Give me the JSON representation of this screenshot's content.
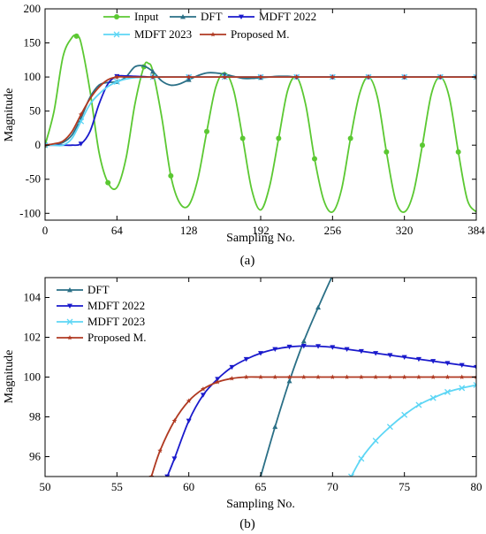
{
  "chart_data": [
    {
      "type": "line",
      "panel_label": "(a)",
      "xlabel": "Sampling No.",
      "ylabel": "Magnitude",
      "xlim": [
        0,
        384
      ],
      "ylim": [
        -110,
        200
      ],
      "xticks": [
        0,
        64,
        128,
        192,
        256,
        320,
        384
      ],
      "yticks": [
        -100,
        -50,
        0,
        50,
        100,
        150,
        200
      ],
      "grid": false,
      "legend_position": "top",
      "series": [
        {
          "name": "Input",
          "color": "#5bc832",
          "marker": "circle",
          "x": [
            0,
            8,
            16,
            24,
            28,
            32,
            40,
            48,
            56,
            64,
            72,
            80,
            88,
            92,
            96,
            104,
            112,
            120,
            128,
            136,
            144,
            152,
            160,
            168,
            176,
            184,
            192,
            200,
            208,
            216,
            224,
            232,
            240,
            248,
            256,
            264,
            272,
            280,
            288,
            296,
            304,
            312,
            320,
            328,
            336,
            344,
            352,
            360,
            368,
            376,
            384
          ],
          "y": [
            0,
            50,
            130,
            158,
            160,
            150,
            80,
            -10,
            -55,
            -62,
            -20,
            60,
            115,
            120,
            108,
            40,
            -45,
            -85,
            -88,
            -50,
            20,
            85,
            106,
            80,
            10,
            -65,
            -95,
            -60,
            10,
            80,
            100,
            60,
            -20,
            -80,
            -98,
            -65,
            10,
            75,
            100,
            70,
            -10,
            -80,
            -98,
            -70,
            0,
            75,
            100,
            70,
            -10,
            -80,
            -98
          ]
        },
        {
          "name": "DFT",
          "color": "#2a6f86",
          "marker": "triangle-up",
          "x": [
            0,
            8,
            16,
            24,
            32,
            40,
            48,
            56,
            64,
            72,
            80,
            88,
            96,
            104,
            112,
            120,
            128,
            136,
            144,
            152,
            160,
            168,
            176,
            184,
            192,
            200,
            208,
            216,
            224,
            232,
            240,
            248,
            256,
            264,
            272,
            280,
            288,
            296,
            304,
            312,
            320,
            328,
            336,
            344,
            352,
            360,
            368,
            376,
            384
          ],
          "y": [
            0,
            1,
            4,
            15,
            40,
            70,
            88,
            92,
            93,
            100,
            115,
            116,
            108,
            94,
            88,
            90,
            96,
            102,
            106,
            106,
            104,
            101,
            98,
            98,
            99,
            100,
            101,
            101,
            100,
            100,
            100,
            100,
            100,
            100,
            100,
            100,
            100,
            100,
            100,
            100,
            100,
            100,
            100,
            100,
            100,
            100,
            100,
            100,
            100
          ]
        },
        {
          "name": "MDFT 2022",
          "color": "#1a1acc",
          "marker": "triangle-down",
          "x": [
            0,
            8,
            16,
            24,
            32,
            40,
            48,
            56,
            64,
            72,
            80,
            88,
            96,
            104,
            112,
            120,
            128,
            136,
            144,
            152,
            160,
            168,
            176,
            184,
            192,
            200,
            208,
            216,
            224,
            232,
            240,
            248,
            256,
            264,
            272,
            280,
            288,
            296,
            304,
            312,
            320,
            328,
            336,
            344,
            352,
            360,
            368,
            376,
            384
          ],
          "y": [
            0,
            0,
            0,
            0,
            2,
            20,
            60,
            90,
            101,
            101.5,
            101,
            100.5,
            100,
            100,
            100,
            100,
            100,
            100,
            100,
            100,
            100,
            100,
            100,
            100,
            100,
            100,
            100,
            100,
            100,
            100,
            100,
            100,
            100,
            100,
            100,
            100,
            100,
            100,
            100,
            100,
            100,
            100,
            100,
            100,
            100,
            100,
            100,
            100,
            100
          ]
        },
        {
          "name": "MDFT 2023",
          "color": "#5dd6f5",
          "marker": "x",
          "x": [
            0,
            8,
            16,
            24,
            32,
            40,
            48,
            56,
            64,
            72,
            80,
            88,
            96,
            104,
            112,
            120,
            128,
            136,
            144,
            152,
            160,
            168,
            176,
            184,
            192,
            200,
            208,
            216,
            224,
            232,
            240,
            248,
            256,
            264,
            272,
            280,
            288,
            296,
            304,
            312,
            320,
            328,
            336,
            344,
            352,
            360,
            368,
            376,
            384
          ],
          "y": [
            0,
            0,
            0,
            10,
            35,
            60,
            75,
            86,
            93,
            97,
            99,
            99.6,
            100,
            100,
            100,
            100,
            100,
            100,
            100,
            100,
            100,
            100,
            100,
            100,
            100,
            100,
            100,
            100,
            100,
            100,
            100,
            100,
            100,
            100,
            100,
            100,
            100,
            100,
            100,
            100,
            100,
            100,
            100,
            100,
            100,
            100,
            100,
            100,
            100
          ]
        },
        {
          "name": "Proposed M.",
          "color": "#b03a22",
          "marker": "star",
          "x": [
            0,
            8,
            16,
            24,
            32,
            40,
            48,
            56,
            64,
            72,
            80,
            88,
            96,
            104,
            112,
            120,
            128,
            136,
            144,
            152,
            160,
            168,
            176,
            184,
            192,
            200,
            208,
            216,
            224,
            232,
            240,
            248,
            256,
            264,
            272,
            280,
            288,
            296,
            304,
            312,
            320,
            328,
            336,
            344,
            352,
            360,
            368,
            376,
            384
          ],
          "y": [
            0,
            2,
            6,
            20,
            45,
            68,
            85,
            96,
            100,
            100,
            100,
            100,
            100,
            100,
            100,
            100,
            100,
            100,
            100,
            100,
            100,
            100,
            100,
            100,
            100,
            100,
            100,
            100,
            100,
            100,
            100,
            100,
            100,
            100,
            100,
            100,
            100,
            100,
            100,
            100,
            100,
            100,
            100,
            100,
            100,
            100,
            100,
            100,
            100
          ]
        }
      ]
    },
    {
      "type": "line",
      "panel_label": "(b)",
      "xlabel": "Sampling No.",
      "ylabel": "Magnitude",
      "xlim": [
        50,
        80
      ],
      "ylim": [
        95,
        105
      ],
      "xticks": [
        50,
        55,
        60,
        65,
        70,
        75,
        80
      ],
      "yticks": [
        96,
        98,
        100,
        102,
        104
      ],
      "grid": false,
      "legend_position": "top-left",
      "series": [
        {
          "name": "DFT",
          "color": "#2a6f86",
          "marker": "triangle-up",
          "x": [
            65,
            66,
            67,
            68,
            69,
            70,
            71
          ],
          "y": [
            95,
            97.5,
            99.8,
            101.8,
            103.5,
            105.1,
            106.5
          ]
        },
        {
          "name": "MDFT 2022",
          "color": "#1a1acc",
          "marker": "triangle-down",
          "x": [
            58.5,
            59,
            60,
            61,
            62,
            63,
            64,
            65,
            66,
            67,
            68,
            69,
            70,
            71,
            72,
            73,
            74,
            75,
            76,
            77,
            78,
            79,
            80
          ],
          "y": [
            95,
            95.9,
            97.8,
            99.1,
            99.9,
            100.5,
            100.9,
            101.2,
            101.4,
            101.52,
            101.56,
            101.55,
            101.5,
            101.4,
            101.3,
            101.2,
            101.1,
            101.0,
            100.9,
            100.8,
            100.7,
            100.6,
            100.5
          ]
        },
        {
          "name": "MDFT 2023",
          "color": "#5dd6f5",
          "marker": "x",
          "x": [
            71.3,
            72,
            73,
            74,
            75,
            76,
            77,
            78,
            79,
            80
          ],
          "y": [
            95,
            95.9,
            96.8,
            97.5,
            98.1,
            98.6,
            98.95,
            99.25,
            99.45,
            99.6
          ]
        },
        {
          "name": "Proposed M.",
          "color": "#b03a22",
          "marker": "star",
          "x": [
            57.4,
            58,
            59,
            60,
            61,
            62,
            63,
            64,
            65,
            66,
            67,
            68,
            69,
            70,
            71,
            72,
            73,
            74,
            75,
            76,
            77,
            78,
            79,
            80
          ],
          "y": [
            95,
            96.3,
            97.8,
            98.8,
            99.4,
            99.75,
            99.93,
            100,
            100,
            100,
            100,
            100,
            100,
            100,
            100,
            100,
            100,
            100,
            100,
            100,
            100,
            100,
            100,
            100
          ]
        }
      ]
    }
  ]
}
